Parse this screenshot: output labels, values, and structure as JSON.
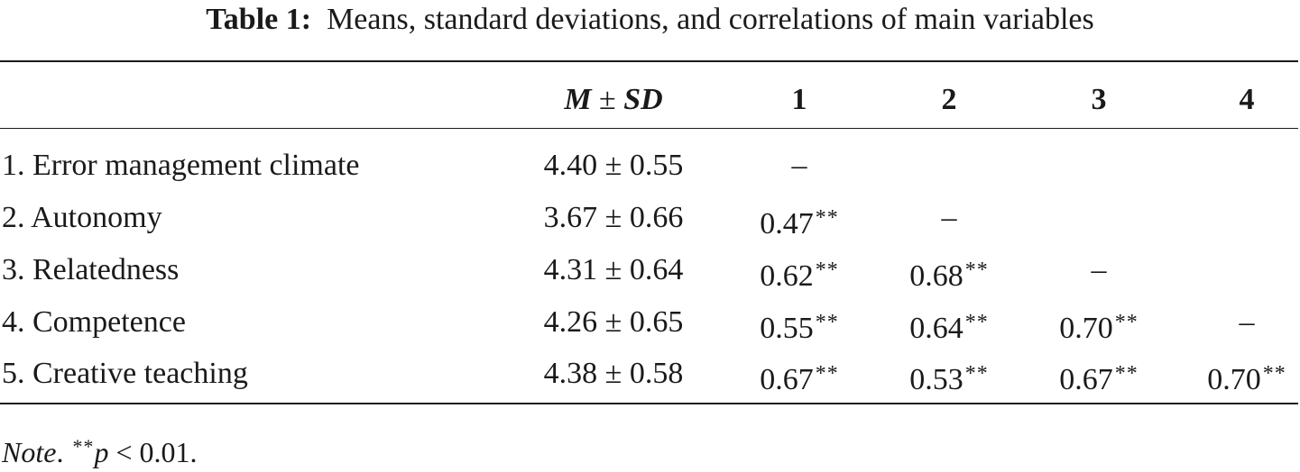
{
  "caption": {
    "label": "Table 1:",
    "text": "Means, standard deviations, and correlations of main variables"
  },
  "header": {
    "m": "M",
    "pm": "±",
    "sd": "SD",
    "cols": [
      "1",
      "2",
      "3",
      "4"
    ]
  },
  "rows": [
    {
      "variable": "1. Error management climate",
      "msd": "4.40 ± 0.55",
      "cells": [
        {
          "v": "–",
          "s": ""
        },
        {
          "v": "",
          "s": ""
        },
        {
          "v": "",
          "s": ""
        },
        {
          "v": "",
          "s": ""
        }
      ]
    },
    {
      "variable": "2. Autonomy",
      "msd": "3.67 ± 0.66",
      "cells": [
        {
          "v": "0.47",
          "s": "**"
        },
        {
          "v": "–",
          "s": ""
        },
        {
          "v": "",
          "s": ""
        },
        {
          "v": "",
          "s": ""
        }
      ]
    },
    {
      "variable": "3. Relatedness",
      "msd": "4.31 ± 0.64",
      "cells": [
        {
          "v": "0.62",
          "s": "**"
        },
        {
          "v": "0.68",
          "s": "**"
        },
        {
          "v": "–",
          "s": ""
        },
        {
          "v": "",
          "s": ""
        }
      ]
    },
    {
      "variable": "4. Competence",
      "msd": "4.26 ± 0.65",
      "cells": [
        {
          "v": "0.55",
          "s": "**"
        },
        {
          "v": "0.64",
          "s": "**"
        },
        {
          "v": "0.70",
          "s": "**"
        },
        {
          "v": "–",
          "s": ""
        }
      ]
    },
    {
      "variable": "5. Creative teaching",
      "msd": "4.38 ± 0.58",
      "cells": [
        {
          "v": "0.67",
          "s": "**"
        },
        {
          "v": "0.53",
          "s": "**"
        },
        {
          "v": "0.67",
          "s": "**"
        },
        {
          "v": "0.70",
          "s": "**"
        }
      ]
    }
  ],
  "note": {
    "label": "Note",
    "stars": "**",
    "p": "p",
    "rest": " < 0.01."
  }
}
